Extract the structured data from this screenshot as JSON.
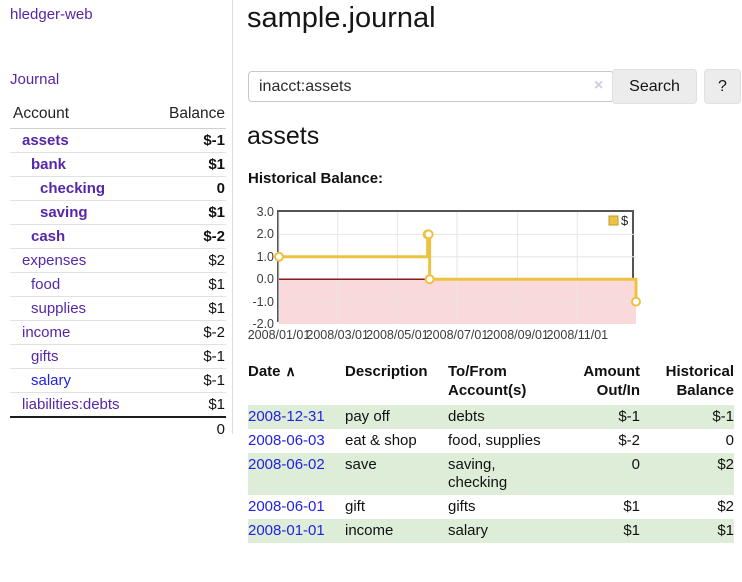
{
  "colors": {
    "purple": "#5627a8",
    "blue_link": "#2222e0",
    "negative": "#8b1f1f",
    "negative_soft": "#c07878",
    "row_stripe_green": "#ddedd8",
    "chart_line_gold": "#edc240",
    "chart_gold_dark": "#c2992f",
    "chart_negative_fill": "#f9d9d9",
    "chart_zero_line": "#8b1a1a",
    "chart_grid": "#e6e6e6",
    "chart_border": "#545454",
    "button_bg": "#ececec",
    "input_border": "#c9c9c9",
    "divider": "#dddddd",
    "text": "#1a1a1a"
  },
  "sidebar": {
    "brand": "hledger-web",
    "journal_label": "Journal",
    "table": {
      "account_header": "Account",
      "balance_header": "Balance",
      "accounts": [
        {
          "name": "assets",
          "balance": "$-1",
          "indent": 0,
          "bold": true,
          "name_color": "purple",
          "balance_color": "negative"
        },
        {
          "name": "bank",
          "balance": "$1",
          "indent": 1,
          "bold": true,
          "name_color": "purple",
          "balance_color": "normal"
        },
        {
          "name": "checking",
          "balance": "0",
          "indent": 2,
          "bold": true,
          "name_color": "purple",
          "balance_color": "normal"
        },
        {
          "name": "saving",
          "balance": "$1",
          "indent": 2,
          "bold": true,
          "name_color": "purple",
          "balance_color": "normal"
        },
        {
          "name": "cash",
          "balance": "$-2",
          "indent": 1,
          "bold": true,
          "name_color": "purple",
          "balance_color": "negative"
        },
        {
          "name": "expenses",
          "balance": "$2",
          "indent": 0,
          "bold": false,
          "name_color": "purple",
          "balance_color": "normal"
        },
        {
          "name": "food",
          "balance": "$1",
          "indent": 1,
          "bold": false,
          "name_color": "purple",
          "balance_color": "normal"
        },
        {
          "name": "supplies",
          "balance": "$1",
          "indent": 1,
          "bold": false,
          "name_color": "purple",
          "balance_color": "normal"
        },
        {
          "name": "income",
          "balance": "$-2",
          "indent": 0,
          "bold": false,
          "name_color": "purple",
          "balance_color": "negative-soft"
        },
        {
          "name": "gifts",
          "balance": "$-1",
          "indent": 1,
          "bold": false,
          "name_color": "purple",
          "balance_color": "negative-soft"
        },
        {
          "name": "salary",
          "balance": "$-1",
          "indent": 1,
          "bold": false,
          "name_color": "blue",
          "balance_color": "negative-soft"
        },
        {
          "name": "liabilities:debts",
          "balance": "$1",
          "indent": 0,
          "bold": false,
          "name_color": "purple",
          "balance_color": "normal"
        }
      ],
      "total": "0"
    }
  },
  "main": {
    "title": "sample.journal",
    "search": {
      "value": "inacct:assets",
      "clear_icon": "×",
      "button_label": "Search",
      "help_label": "?"
    },
    "account_heading": "assets",
    "chart_label": "Historical Balance:"
  },
  "chart_data": {
    "type": "line",
    "subtype": "step",
    "title": "Historical Balance",
    "legend": [
      {
        "label": "$"
      }
    ],
    "legend_position": "top-right",
    "grid": true,
    "ylim": [
      -2,
      3
    ],
    "y_ticks": [
      "3.0",
      "2.0",
      "1.0",
      "0.0",
      "-1.0",
      "-2.0"
    ],
    "x_range": [
      "2008/01/01",
      "2008/12/31"
    ],
    "x_ticks": [
      "2008/01/01",
      "2008/03/01",
      "2008/05/01",
      "2008/07/01",
      "2008/09/01",
      "2008/11/01"
    ],
    "negative_region_shaded": true,
    "series": [
      {
        "name": "$",
        "points": [
          [
            "2008/01/01",
            1
          ],
          [
            "2008/06/01",
            2
          ],
          [
            "2008/06/02",
            2
          ],
          [
            "2008/06/03",
            0
          ],
          [
            "2008/12/31",
            -1
          ]
        ]
      }
    ]
  },
  "register": {
    "columns": [
      "Date",
      "Description",
      "To/From Account(s)",
      "Amount Out/In",
      "Historical Balance"
    ],
    "sort_indicator": "∧",
    "rows": [
      {
        "date": "2008-12-31",
        "description": "pay off",
        "accounts": "debts",
        "amount": "$-1",
        "balance": "$-1"
      },
      {
        "date": "2008-06-03",
        "description": "eat & shop",
        "accounts": "food, supplies",
        "amount": "$-2",
        "balance": "0"
      },
      {
        "date": "2008-06-02",
        "description": "save",
        "accounts": "saving, checking",
        "amount": "0",
        "balance": "$2"
      },
      {
        "date": "2008-06-01",
        "description": "gift",
        "accounts": "gifts",
        "amount": "$1",
        "balance": "$2"
      },
      {
        "date": "2008-01-01",
        "description": "income",
        "accounts": "salary",
        "amount": "$1",
        "balance": "$1"
      }
    ]
  }
}
